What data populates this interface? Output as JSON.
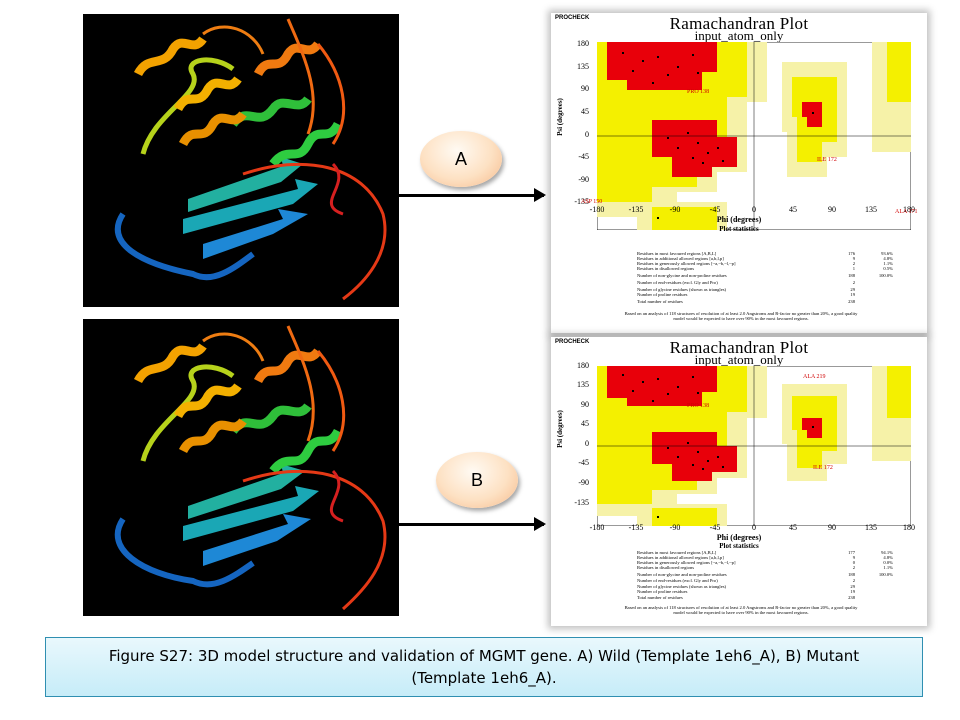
{
  "panels": [
    {
      "button_label": "A",
      "plot": {
        "procheck": "PROCHECK",
        "title": "Ramachandran Plot",
        "subtitle": "input_atom_only",
        "x_axis_title": "Phi (degrees)",
        "y_axis_title": "Psi (degrees)",
        "x_ticks": [
          "-180",
          "-135",
          "-90",
          "-45",
          "0",
          "45",
          "90",
          "135",
          "180"
        ],
        "y_ticks": [
          "180",
          "135",
          "90",
          "45",
          "0",
          "-45",
          "-90",
          "-135"
        ],
        "marked_residues": [
          "PRO 138",
          "ILE 172",
          "ASP 150",
          "ALA 171"
        ],
        "stats_title": "Plot statistics",
        "stats": [
          {
            "label": "Residues in most favoured regions  [A,B,L]",
            "count": "176",
            "percent": "93.6%"
          },
          {
            "label": "Residues in additional allowed regions  [a,b,l,p]",
            "count": "9",
            "percent": "4.8%"
          },
          {
            "label": "Residues in generously allowed regions  [~a,~b,~l,~p]",
            "count": "2",
            "percent": "1.1%"
          },
          {
            "label": "Residues in disallowed regions",
            "count": "1",
            "percent": "0.5%"
          },
          {
            "label": "Number of non-glycine and non-proline residues",
            "count": "188",
            "percent": "100.0%"
          },
          {
            "label": "Number of end-residues (excl. Gly and Pro)",
            "count": "2",
            "percent": ""
          },
          {
            "label": "Number of glycine residues (shown as triangles)",
            "count": "29",
            "percent": ""
          },
          {
            "label": "Number of proline residues",
            "count": "19",
            "percent": ""
          },
          {
            "label": "Total number of residues",
            "count": "238",
            "percent": ""
          }
        ],
        "footnote": "Based on an analysis of 118 structures of resolution of at least 2.0 Angstroms and R-factor no greater than 20%, a good quality model would be expected to have over 90% in the most favoured regions."
      }
    },
    {
      "button_label": "B",
      "plot": {
        "procheck": "PROCHECK",
        "title": "Ramachandran Plot",
        "subtitle": "input_atom_only",
        "x_axis_title": "Phi (degrees)",
        "y_axis_title": "Psi (degrees)",
        "x_ticks": [
          "-180",
          "-135",
          "-90",
          "-45",
          "0",
          "45",
          "90",
          "135",
          "180"
        ],
        "y_ticks": [
          "180",
          "135",
          "90",
          "45",
          "0",
          "-45",
          "-90",
          "-135"
        ],
        "marked_residues": [
          "PRO 138",
          "ALA 219",
          "ILE 172"
        ],
        "stats_title": "Plot statistics",
        "stats": [
          {
            "label": "Residues in most favoured regions  [A,B,L]",
            "count": "177",
            "percent": "94.1%"
          },
          {
            "label": "Residues in additional allowed regions  [a,b,l,p]",
            "count": "9",
            "percent": "4.8%"
          },
          {
            "label": "Residues in generously allowed regions  [~a,~b,~l,~p]",
            "count": "0",
            "percent": "0.0%"
          },
          {
            "label": "Residues in disallowed regions",
            "count": "2",
            "percent": "1.1%"
          },
          {
            "label": "Number of non-glycine and non-proline residues",
            "count": "188",
            "percent": "100.0%"
          },
          {
            "label": "Number of end-residues (excl. Gly and Pro)",
            "count": "2",
            "percent": ""
          },
          {
            "label": "Number of glycine residues (shown as triangles)",
            "count": "29",
            "percent": ""
          },
          {
            "label": "Number of proline residues",
            "count": "19",
            "percent": ""
          },
          {
            "label": "Total number of residues",
            "count": "238",
            "percent": ""
          }
        ],
        "footnote": "Based on an analysis of 118 structures of resolution of at least 2.0 Angstroms and R-factor no greater than 20%, a good quality model would be expected to have over 90% in the most favoured regions."
      }
    }
  ],
  "caption": "Figure S27: 3D model structure and validation of MGMT gene. A) Wild (Template 1eh6_A), B) Mutant (Template 1eh6_A).",
  "colors": {
    "most_favoured": "#e8000a",
    "additional_allowed": "#f4f000",
    "generously_allowed": "#f6f2a8",
    "caption_border": "#2f8fb1"
  }
}
